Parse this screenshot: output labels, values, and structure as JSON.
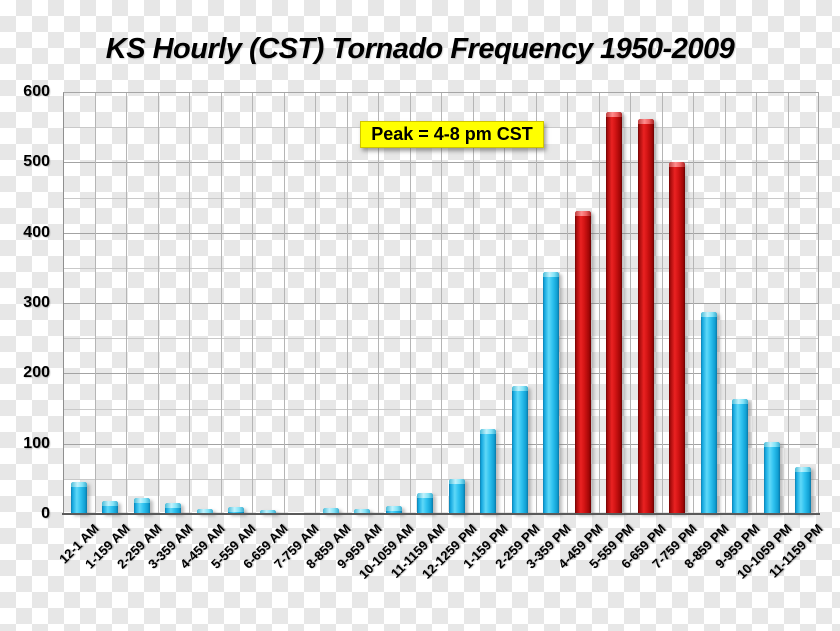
{
  "chart_data": {
    "type": "bar",
    "title": "KS Hourly (CST) Tornado Frequency 1950-2009",
    "annotation": "Peak = 4-8 pm CST",
    "categories": [
      "12-1 AM",
      "1-159 AM",
      "2-259 AM",
      "3-359 AM",
      "4-459 AM",
      "5-559 AM",
      "6-659 AM",
      "7-759 AM",
      "8-859 AM",
      "9-959 AM",
      "10-1059 AM",
      "11-1159 AM",
      "12-1259 PM",
      "1-159 PM",
      "2-259 PM",
      "3-359 PM",
      "4-459 PM",
      "5-559 PM",
      "6-659 PM",
      "7-759 PM",
      "8-859 PM",
      "9-959 PM",
      "10-1059 PM",
      "11-1159 PM"
    ],
    "values": [
      45,
      18,
      23,
      15,
      7,
      10,
      5,
      0,
      8,
      7,
      12,
      30,
      50,
      121,
      182,
      344,
      431,
      571,
      562,
      501,
      287,
      164,
      102,
      67
    ],
    "peak_indices": [
      16,
      17,
      18,
      19
    ],
    "ylim": [
      0,
      600
    ],
    "yticks": [
      0,
      100,
      200,
      300,
      400,
      500,
      600
    ],
    "ytick_interval": 100,
    "grid_interval": 50,
    "grid_on": true,
    "legend": "none",
    "xlabel": "",
    "ylabel": "",
    "colors": {
      "bar": "#1fb5e9",
      "bar_peak": "#cc1111",
      "annotation_bg": "#ffff00",
      "annotation_border": "#cfc400",
      "grid_major": "#a3a3a3",
      "grid_minor": "#c9c9c9",
      "axis_line": "#5a5a5a",
      "text": "#000000",
      "checker_light": "#ffffff",
      "checker_dark": "#e7e7e7"
    }
  }
}
